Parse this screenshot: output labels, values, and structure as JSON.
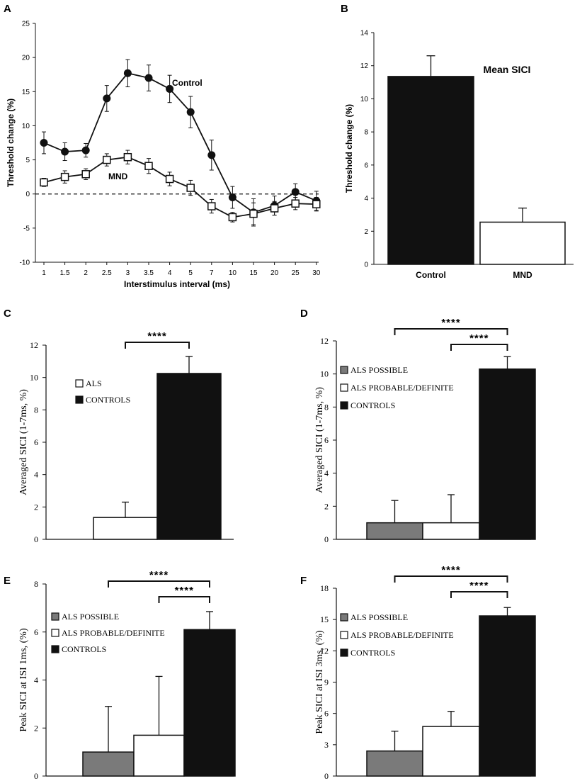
{
  "colors": {
    "black": "#111111",
    "gray": "#7a7a7a",
    "white": "#ffffff"
  },
  "chart_data": [
    {
      "panel": "A",
      "type": "line",
      "xlabel": "Interstimulus interval (ms)",
      "ylabel": "Threshold change (%)",
      "categories": [
        "1",
        "1.5",
        "2",
        "2.5",
        "3",
        "3.5",
        "4",
        "5",
        "7",
        "10",
        "15",
        "20",
        "25",
        "30"
      ],
      "ylim": [
        -10,
        25
      ],
      "yticks": [
        25,
        20,
        15,
        10,
        5,
        0,
        -5,
        -10
      ],
      "reference_line": 0,
      "series": [
        {
          "name": "Control",
          "marker": "filled-circle",
          "values": [
            7.5,
            6.2,
            6.4,
            14.0,
            17.7,
            17.0,
            15.4,
            12.0,
            5.7,
            -0.5,
            -2.7,
            -1.7,
            0.3,
            -1.0
          ],
          "errors": [
            1.6,
            1.3,
            1.0,
            1.9,
            2.0,
            1.9,
            2.0,
            2.3,
            2.2,
            1.6,
            2.0,
            1.4,
            1.2,
            1.4
          ]
        },
        {
          "name": "MND",
          "marker": "open-square",
          "values": [
            1.7,
            2.5,
            2.9,
            5.0,
            5.4,
            4.1,
            2.2,
            0.9,
            -1.8,
            -3.4,
            -2.9,
            -2.1,
            -1.4,
            -1.5
          ],
          "errors": [
            0.6,
            0.9,
            0.8,
            0.9,
            1.0,
            1.1,
            1.0,
            1.1,
            1.0,
            0.7,
            1.6,
            1.0,
            0.9,
            1.0
          ]
        }
      ]
    },
    {
      "panel": "B",
      "type": "bar",
      "title": "Mean SICI",
      "ylabel": "Threshold change (%)",
      "categories": [
        "Control",
        "MND"
      ],
      "values": [
        11.35,
        2.55
      ],
      "errors": [
        1.25,
        0.85
      ],
      "fills": [
        "black",
        "white"
      ],
      "ylim": [
        0,
        14
      ],
      "yticks": [
        0,
        2,
        4,
        6,
        8,
        10,
        12,
        14
      ]
    },
    {
      "panel": "C",
      "type": "bar",
      "ylabel": "Averaged SICI (1-7ms, %)",
      "legend": [
        {
          "label": "ALS",
          "fill": "white"
        },
        {
          "label": "CONTROLS",
          "fill": "black"
        }
      ],
      "values": [
        1.35,
        10.25
      ],
      "errors": [
        0.95,
        1.05
      ],
      "fills": [
        "white",
        "black"
      ],
      "ylim": [
        0,
        12
      ],
      "yticks": [
        0,
        2,
        4,
        6,
        8,
        10,
        12
      ],
      "significance": [
        {
          "from": 0,
          "to": 1,
          "label": "****"
        }
      ]
    },
    {
      "panel": "D",
      "type": "bar",
      "ylabel": "Averaged SICI (1-7ms, %)",
      "legend": [
        {
          "label": "ALS POSSIBLE",
          "fill": "gray"
        },
        {
          "label": "ALS PROBABLE/DEFINITE",
          "fill": "white"
        },
        {
          "label": "CONTROLS",
          "fill": "black"
        }
      ],
      "values": [
        1.0,
        1.0,
        10.3
      ],
      "errors": [
        1.35,
        1.7,
        0.75
      ],
      "fills": [
        "gray",
        "white",
        "black"
      ],
      "ylim": [
        0,
        12
      ],
      "yticks": [
        0,
        2,
        4,
        6,
        8,
        10,
        12
      ],
      "significance": [
        {
          "from": 0,
          "to": 2,
          "label": "****"
        },
        {
          "from": 1,
          "to": 2,
          "label": "****"
        }
      ]
    },
    {
      "panel": "E",
      "type": "bar",
      "ylabel": "Peak SICI at ISI 1ms, (%)",
      "legend": [
        {
          "label": "ALS POSSIBLE",
          "fill": "gray"
        },
        {
          "label": "ALS PROBABLE/DEFINITE",
          "fill": "white"
        },
        {
          "label": "CONTROLS",
          "fill": "black"
        }
      ],
      "values": [
        1.0,
        1.7,
        6.1
      ],
      "errors": [
        1.9,
        2.45,
        0.75
      ],
      "fills": [
        "gray",
        "white",
        "black"
      ],
      "ylim": [
        0,
        8
      ],
      "yticks": [
        0,
        2,
        4,
        6,
        8
      ],
      "significance": [
        {
          "from": 0,
          "to": 2,
          "label": "****"
        },
        {
          "from": 1,
          "to": 2,
          "label": "****"
        }
      ]
    },
    {
      "panel": "F",
      "type": "bar",
      "ylabel": "Peak SICI at ISI 3ms, (%)",
      "legend": [
        {
          "label": "ALS POSSIBLE",
          "fill": "gray"
        },
        {
          "label": "ALS PROBABLE/DEFINITE",
          "fill": "white"
        },
        {
          "label": "CONTROLS",
          "fill": "black"
        }
      ],
      "values": [
        2.4,
        4.75,
        15.35
      ],
      "errors": [
        1.9,
        1.45,
        0.8
      ],
      "fills": [
        "gray",
        "white",
        "black"
      ],
      "ylim": [
        0,
        18
      ],
      "yticks": [
        0,
        3,
        6,
        9,
        12,
        15,
        18
      ],
      "significance": [
        {
          "from": 0,
          "to": 2,
          "label": "****"
        },
        {
          "from": 1,
          "to": 2,
          "label": "****"
        }
      ]
    }
  ]
}
